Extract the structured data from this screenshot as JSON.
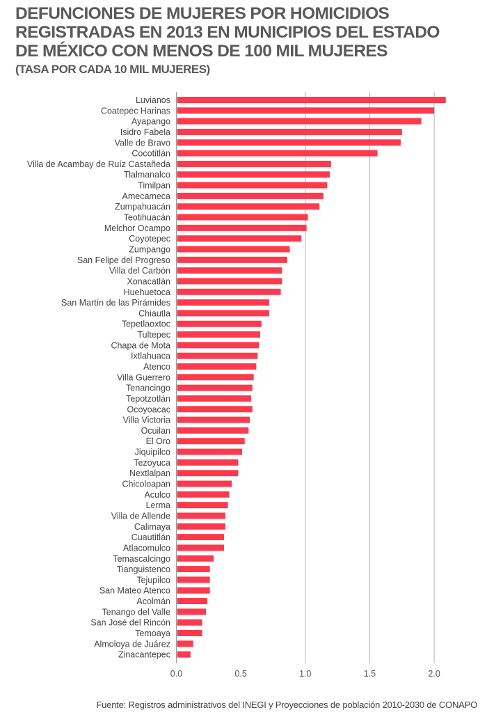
{
  "header": {
    "title_lines": [
      "DEFUNCIONES DE MUJERES POR HOMICIDIOS",
      "REGISTRADAS EN 2013 EN MUNICIPIOS DEL ESTADO",
      "DE MÉXICO CON MENOS DE 100 MIL MUJERES"
    ],
    "subtitle": "(TASA POR CADA 10 MIL MUJERES)"
  },
  "source": "Fuente: Registros administrativos del INEGI y Proyecciones de población 2010-2030 de CONAPO",
  "colors": {
    "bar": "#fc3a4d",
    "grid": "#b3b3b3",
    "title": "#595959"
  },
  "chart_data": {
    "type": "bar",
    "orientation": "horizontal",
    "title": "DEFUNCIONES DE MUJERES POR HOMICIDIOS REGISTRADAS EN 2013 EN MUNICIPIOS DEL ESTADO DE MÉXICO CON MENOS DE 100 MIL MUJERES",
    "subtitle": "(TASA POR CADA 10 MIL MUJERES)",
    "xlabel": "",
    "ylabel": "",
    "xlim": [
      0,
      2.1
    ],
    "x_ticks": [
      0.0,
      0.5,
      1.0,
      1.5,
      2.0
    ],
    "x_tick_labels": [
      "0.0",
      "0.5",
      "1.0",
      "1.5",
      "2.0"
    ],
    "gridlines_at": [
      1.0,
      1.5,
      2.0
    ],
    "grid": true,
    "legend": "none",
    "categories": [
      "Luvianos",
      "Coatepec Harinas",
      "Ayapango",
      "Isidro Fabela",
      "Valle de Bravo",
      "Cocotitlán",
      "Villa de Acambay de Ruíz Castañeda",
      "Tlalmanalco",
      "Timilpan",
      "Amecameca",
      "Zumpahuacán",
      "Teotihuacán",
      "Melchor Ocampo",
      "Coyotepec",
      "Zumpango",
      "San Felipe del Progreso",
      "Villa del Carbón",
      "Xonacatlán",
      "Huehuetoca",
      "San Martín de las Pirámides",
      "Chiautla",
      "Tepetlaoxtoc",
      "Tultepec",
      "Chapa de Mota",
      "Ixtlahuaca",
      "Atenco",
      "Villa Guerrero",
      "Tenancingo",
      "Tepotzotlán",
      "Ocoyoacac",
      "Villa Victoria",
      "Ocuilan",
      "El Oro",
      "Jiquipilco",
      "Tezoyuca",
      "Nextlalpan",
      "Chicoloapan",
      "Aculco",
      "Lerma",
      "Villa de Allende",
      "Calimaya",
      "Cuautitlán",
      "Atlacomulco",
      "Temascalcingo",
      "Tianguistenco",
      "Tejupilco",
      "San Mateo Atenco",
      "Acolmán",
      "Tenango del Valle",
      "San José del Rincón",
      "Temoaya",
      "Almoloya de Juárez",
      "Zinacantepec"
    ],
    "values": [
      2.09,
      2.0,
      1.9,
      1.75,
      1.74,
      1.56,
      1.2,
      1.19,
      1.17,
      1.14,
      1.11,
      1.02,
      1.01,
      0.97,
      0.88,
      0.86,
      0.82,
      0.82,
      0.81,
      0.72,
      0.72,
      0.66,
      0.65,
      0.64,
      0.63,
      0.62,
      0.6,
      0.59,
      0.58,
      0.59,
      0.57,
      0.56,
      0.53,
      0.51,
      0.48,
      0.48,
      0.43,
      0.41,
      0.4,
      0.38,
      0.38,
      0.37,
      0.37,
      0.29,
      0.26,
      0.26,
      0.26,
      0.24,
      0.23,
      0.2,
      0.2,
      0.13,
      0.11
    ]
  }
}
